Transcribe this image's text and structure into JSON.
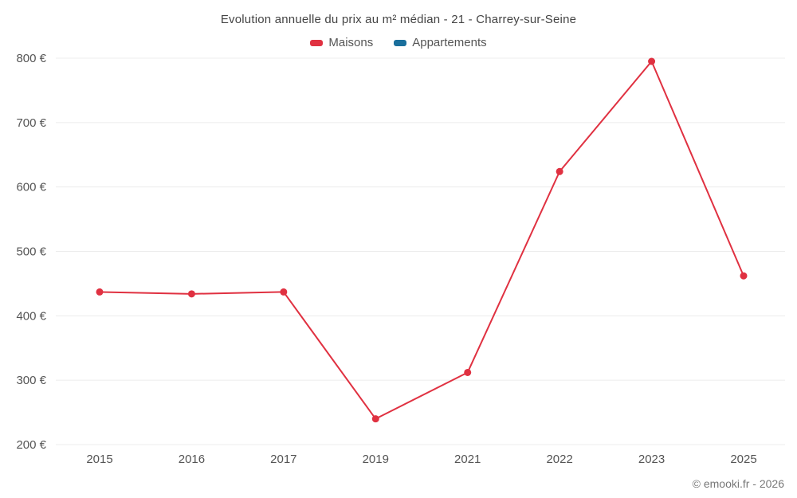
{
  "chart_data": {
    "type": "line",
    "title": "Evolution annuelle du prix au m² médian - 21 - Charrey-sur-Seine",
    "categories": [
      "2015",
      "2016",
      "2017",
      "2019",
      "2021",
      "2022",
      "2023",
      "2025"
    ],
    "series": [
      {
        "name": "Maisons",
        "color": "#e03141",
        "values": [
          437,
          434,
          437,
          240,
          312,
          624,
          795,
          462
        ]
      },
      {
        "name": "Appartements",
        "color": "#1a6f9c",
        "values": []
      }
    ],
    "xlabel": "",
    "ylabel": "",
    "ylim": [
      200,
      800
    ],
    "y_ticks": [
      200,
      300,
      400,
      500,
      600,
      700,
      800
    ],
    "y_tick_suffix": " €",
    "grid": "horizontal",
    "grid_color": "#ececec",
    "legend_position": "top"
  },
  "footer": {
    "copyright": "© emooki.fr - 2026"
  }
}
